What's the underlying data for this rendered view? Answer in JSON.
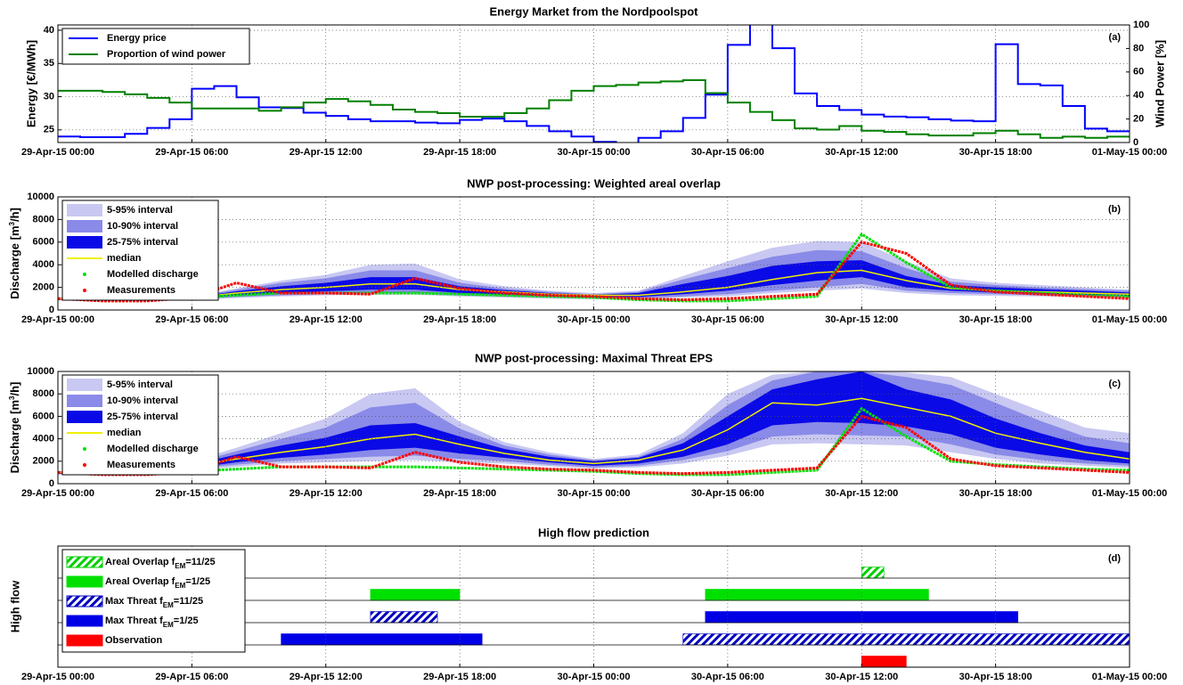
{
  "chart_data": [
    {
      "type": "step",
      "title": "Energy Market from the Nordpoolspot",
      "annotation": "(a)",
      "ylabel": "Energy [€/MWh]",
      "y2label": "Wind Power [%]",
      "legend": "upper left",
      "grid": true,
      "xlim": [
        0,
        48
      ],
      "xticks": [
        {
          "value": 0,
          "label": "29-Apr-15 00:00"
        },
        {
          "value": 6,
          "label": "29-Apr-15 06:00"
        },
        {
          "value": 12,
          "label": "29-Apr-15 12:00"
        },
        {
          "value": 18,
          "label": "29-Apr-15 18:00"
        },
        {
          "value": 24,
          "label": "30-Apr-15 00:00"
        },
        {
          "value": 30,
          "label": "30-Apr-15 06:00"
        },
        {
          "value": 36,
          "label": "30-Apr-15 12:00"
        },
        {
          "value": 42,
          "label": "30-Apr-15 18:00"
        },
        {
          "value": 48,
          "label": "01-May-15 00:00"
        }
      ],
      "ylim": [
        23.1,
        40.8
      ],
      "yticks": [
        25,
        30,
        35,
        40
      ],
      "ycolor": "#0000ff",
      "y2lim": [
        0,
        100
      ],
      "y2ticks": [
        0,
        20,
        40,
        60,
        80,
        100
      ],
      "y2color": "#008000",
      "x": [
        0,
        1,
        2,
        3,
        4,
        5,
        6,
        7,
        8,
        9,
        10,
        11,
        12,
        13,
        14,
        15,
        16,
        17,
        18,
        19,
        20,
        21,
        22,
        23,
        24,
        25,
        26,
        27,
        28,
        29,
        30,
        31,
        32,
        33,
        34,
        35,
        36,
        37,
        38,
        39,
        40,
        41,
        42,
        43,
        44,
        45,
        46,
        47
      ],
      "series": [
        {
          "name": "Energy price",
          "color": "#0000ff",
          "values": [
            24.0,
            23.9,
            23.9,
            24.4,
            25.3,
            26.6,
            31.2,
            31.6,
            29.9,
            28.4,
            28.3,
            27.6,
            27.1,
            26.6,
            26.3,
            26.3,
            26.1,
            26.0,
            26.5,
            26.7,
            26.3,
            25.6,
            24.8,
            24.0,
            23.2,
            23.0,
            23.8,
            24.8,
            26.8,
            30.3,
            37.8,
            45,
            37.3,
            30.5,
            28.6,
            28.0,
            27.3,
            27.0,
            26.9,
            26.6,
            26.4,
            26.3,
            37.9,
            31.9,
            31.7,
            28.6,
            25.2,
            24.8
          ]
        },
        {
          "name": "Proportion of wind power",
          "color": "#008000",
          "axis": "y2",
          "values": [
            44,
            44,
            43,
            41,
            38,
            34,
            29,
            29,
            29,
            27,
            30,
            34,
            37,
            35,
            32,
            28,
            26,
            25,
            22,
            22,
            25,
            29,
            36,
            44,
            48,
            49,
            51,
            52,
            53,
            42,
            34,
            26,
            19,
            12,
            11,
            14,
            10,
            9,
            7,
            6,
            6,
            8,
            10,
            7,
            4,
            5,
            4,
            5
          ]
        }
      ]
    },
    {
      "type": "band",
      "title": "NWP post-processing: Weighted areal overlap",
      "annotation": "(b)",
      "ylabel": [
        "Discharge [m",
        "3",
        "/h]"
      ],
      "legend": "upper left",
      "grid": true,
      "xlim": [
        0,
        48
      ],
      "xticks": [
        {
          "value": 0,
          "label": "29-Apr-15 00:00"
        },
        {
          "value": 6,
          "label": "29-Apr-15 06:00"
        },
        {
          "value": 12,
          "label": "29-Apr-15 12:00"
        },
        {
          "value": 18,
          "label": "29-Apr-15 18:00"
        },
        {
          "value": 24,
          "label": "30-Apr-15 00:00"
        },
        {
          "value": 30,
          "label": "30-Apr-15 06:00"
        },
        {
          "value": 36,
          "label": "30-Apr-15 12:00"
        },
        {
          "value": 42,
          "label": "30-Apr-15 18:00"
        },
        {
          "value": 48,
          "label": "01-May-15 00:00"
        }
      ],
      "ylim": [
        0,
        10000
      ],
      "yticks": [
        0,
        2000,
        4000,
        6000,
        8000,
        10000
      ],
      "x": [
        0,
        2,
        4,
        6,
        8,
        10,
        12,
        14,
        16,
        18,
        20,
        22,
        24,
        26,
        28,
        30,
        32,
        34,
        36,
        38,
        40,
        42,
        44,
        46,
        48
      ],
      "series": [
        {
          "name": "5-95% interval",
          "color": "#c8c8f2",
          "lower": [
            850,
            850,
            850,
            900,
            1050,
            1200,
            1300,
            1350,
            1350,
            1200,
            1100,
            1000,
            950,
            950,
            1100,
            1200,
            1500,
            1700,
            1900,
            1500,
            1300,
            1250,
            1200,
            1150,
            1050
          ],
          "upper": [
            1100,
            1100,
            1100,
            1200,
            1900,
            2600,
            3100,
            4000,
            4100,
            2700,
            2100,
            1700,
            1500,
            1700,
            3000,
            4300,
            5500,
            6100,
            6000,
            4300,
            2800,
            2400,
            2200,
            2000,
            1800
          ]
        },
        {
          "name": "10-90% interval",
          "color": "#8a8ae8",
          "lower": [
            900,
            900,
            900,
            950,
            1150,
            1300,
            1400,
            1500,
            1500,
            1300,
            1200,
            1100,
            1050,
            1050,
            1200,
            1400,
            1700,
            2000,
            2300,
            1700,
            1500,
            1400,
            1300,
            1250,
            1150
          ],
          "upper": [
            1050,
            1050,
            1050,
            1150,
            1800,
            2400,
            2800,
            3500,
            3500,
            2400,
            1900,
            1600,
            1400,
            1600,
            2700,
            3700,
            4700,
            5300,
            5200,
            3700,
            2500,
            2200,
            2000,
            1850,
            1700
          ]
        },
        {
          "name": "25-75% interval",
          "color": "#0a0ae6",
          "lower": [
            950,
            950,
            950,
            1000,
            1300,
            1500,
            1650,
            1800,
            1800,
            1500,
            1350,
            1250,
            1150,
            1150,
            1400,
            1700,
            2200,
            2600,
            2900,
            2000,
            1700,
            1550,
            1450,
            1350,
            1250
          ],
          "upper": [
            1000,
            1000,
            1000,
            1100,
            1650,
            2100,
            2400,
            2900,
            2900,
            2100,
            1750,
            1500,
            1350,
            1500,
            2300,
            3000,
            3900,
            4300,
            4400,
            3000,
            2200,
            2000,
            1850,
            1700,
            1550
          ]
        },
        {
          "name": "median",
          "color": "#f0f000",
          "values": [
            1000,
            1000,
            1000,
            1050,
            1500,
            1800,
            2000,
            2300,
            2300,
            1800,
            1600,
            1400,
            1300,
            1300,
            1600,
            2000,
            2700,
            3300,
            3500,
            2600,
            1900,
            1700,
            1600,
            1500,
            1400
          ]
        },
        {
          "name": "Modelled discharge",
          "color": "#00e000",
          "marker": "dot",
          "values": [
            1000,
            900,
            900,
            1100,
            1300,
            1500,
            1500,
            1500,
            1500,
            1400,
            1300,
            1200,
            1100,
            900,
            800,
            800,
            1000,
            1200,
            6700,
            4200,
            2000,
            1700,
            1500,
            1300,
            1200
          ]
        },
        {
          "name": "Measurements",
          "color": "#ff0000",
          "marker": "dot",
          "values": [
            1000,
            800,
            800,
            1100,
            2400,
            1500,
            1500,
            1400,
            2800,
            1900,
            1500,
            1300,
            1200,
            1000,
            900,
            1000,
            1200,
            1400,
            6000,
            5000,
            2200,
            1600,
            1400,
            1200,
            1000
          ]
        }
      ]
    },
    {
      "type": "band",
      "title": "NWP post-processing: Maximal Threat EPS",
      "annotation": "(c)",
      "ylabel": [
        "Discharge [m",
        "3",
        "/h]"
      ],
      "legend": "upper left",
      "grid": true,
      "xlim": [
        0,
        48
      ],
      "xticks": [
        {
          "value": 0,
          "label": "29-Apr-15 00:00"
        },
        {
          "value": 6,
          "label": "29-Apr-15 06:00"
        },
        {
          "value": 12,
          "label": "29-Apr-15 12:00"
        },
        {
          "value": 18,
          "label": "29-Apr-15 18:00"
        },
        {
          "value": 24,
          "label": "30-Apr-15 00:00"
        },
        {
          "value": 30,
          "label": "30-Apr-15 06:00"
        },
        {
          "value": 36,
          "label": "30-Apr-15 12:00"
        },
        {
          "value": 42,
          "label": "30-Apr-15 18:00"
        },
        {
          "value": 48,
          "label": "01-May-15 00:00"
        }
      ],
      "ylim": [
        0,
        10000
      ],
      "yticks": [
        0,
        2000,
        4000,
        6000,
        8000,
        10000
      ],
      "x": [
        0,
        2,
        4,
        6,
        8,
        10,
        12,
        14,
        16,
        18,
        20,
        22,
        24,
        26,
        28,
        30,
        32,
        34,
        36,
        38,
        40,
        42,
        44,
        46,
        48
      ],
      "series": [
        {
          "name": "5-95% interval",
          "color": "#c8c8f2",
          "lower": [
            800,
            850,
            900,
            1200,
            1500,
            1800,
            1900,
            2000,
            2100,
            1900,
            1800,
            1550,
            1350,
            1450,
            1800,
            2500,
            3500,
            3600,
            3500,
            3400,
            2800,
            2200,
            1800,
            1600,
            1400
          ],
          "upper": [
            1100,
            1100,
            1200,
            2000,
            3200,
            4500,
            5800,
            8000,
            8500,
            5500,
            3700,
            2800,
            2200,
            2600,
            4500,
            8000,
            9700,
            10000,
            10000,
            9900,
            9500,
            8000,
            6500,
            5000,
            4500
          ]
        },
        {
          "name": "10-90% interval",
          "color": "#8a8ae8",
          "lower": [
            850,
            900,
            950,
            1300,
            1700,
            2000,
            2200,
            2400,
            2500,
            2200,
            2000,
            1700,
            1450,
            1600,
            2100,
            2900,
            4200,
            4400,
            4300,
            4200,
            3500,
            2600,
            2100,
            1800,
            1600
          ],
          "upper": [
            1050,
            1050,
            1150,
            1850,
            2900,
            4000,
            5000,
            6800,
            7200,
            4900,
            3400,
            2600,
            2100,
            2400,
            4000,
            7000,
            9200,
            10000,
            10000,
            9500,
            8800,
            7200,
            5600,
            4200,
            3600
          ]
        },
        {
          "name": "25-75% interval",
          "color": "#0a0ae6",
          "lower": [
            900,
            950,
            1000,
            1400,
            1900,
            2300,
            2600,
            3000,
            3200,
            2700,
            2300,
            1900,
            1600,
            1800,
            2400,
            3500,
            5200,
            5500,
            5400,
            5100,
            4400,
            3200,
            2600,
            2100,
            1800
          ],
          "upper": [
            1000,
            1000,
            1100,
            1700,
            2600,
            3400,
            4100,
            5200,
            5400,
            4200,
            3100,
            2400,
            2000,
            2300,
            3600,
            6000,
            8400,
            9300,
            10000,
            8400,
            7500,
            5800,
            4500,
            3400,
            2800
          ]
        },
        {
          "name": "median",
          "color": "#f0f000",
          "values": [
            1000,
            1000,
            1100,
            1600,
            2200,
            2800,
            3300,
            4000,
            4400,
            3500,
            2700,
            2100,
            1800,
            2100,
            3000,
            4800,
            7200,
            7000,
            7600,
            6800,
            6000,
            4500,
            3600,
            2800,
            2200
          ]
        },
        {
          "name": "Modelled discharge",
          "color": "#00e000",
          "marker": "dot",
          "values": [
            1000,
            900,
            900,
            1100,
            1300,
            1500,
            1500,
            1500,
            1500,
            1400,
            1300,
            1200,
            1100,
            900,
            800,
            800,
            1000,
            1200,
            6700,
            4200,
            2000,
            1700,
            1500,
            1300,
            1200
          ]
        },
        {
          "name": "Measurements",
          "color": "#ff0000",
          "marker": "dot",
          "values": [
            1000,
            800,
            800,
            1100,
            2400,
            1500,
            1500,
            1400,
            2800,
            1900,
            1500,
            1300,
            1200,
            1000,
            900,
            1000,
            1200,
            1400,
            6000,
            5000,
            2200,
            1600,
            1400,
            1200,
            1000
          ]
        }
      ]
    },
    {
      "type": "timeline",
      "title": "High flow prediction",
      "annotation": "(d)",
      "ylabel": "High flow",
      "legend": "upper left",
      "grid": true,
      "xlim": [
        0,
        48
      ],
      "xticks": [
        {
          "value": 0,
          "label": "29-Apr-15 00:00"
        },
        {
          "value": 6,
          "label": "29-Apr-15 06:00"
        },
        {
          "value": 12,
          "label": "29-Apr-15 12:00"
        },
        {
          "value": 18,
          "label": "29-Apr-15 18:00"
        },
        {
          "value": 24,
          "label": "30-Apr-15 00:00"
        },
        {
          "value": 30,
          "label": "30-Apr-15 06:00"
        },
        {
          "value": 36,
          "label": "30-Apr-15 12:00"
        },
        {
          "value": 42,
          "label": "30-Apr-15 18:00"
        },
        {
          "value": 48,
          "label": "01-May-15 00:00"
        }
      ],
      "series": [
        {
          "name": [
            "Areal Overlap f",
            "EM",
            "=11/25"
          ],
          "color": "#00d000",
          "hatch": true
        },
        {
          "name": [
            "Areal Overlap f",
            "EM",
            "=1/25"
          ],
          "color": "#00e000"
        },
        {
          "name": [
            "Max Threat f",
            "EM",
            "=11/25"
          ],
          "color": "#0000c0",
          "hatch": true
        },
        {
          "name": [
            "Max Threat f",
            "EM",
            "=1/25"
          ],
          "color": "#0000e6"
        },
        {
          "name": "Observation",
          "color": "#ff0000"
        }
      ],
      "rows": [
        [
          {
            "series": 0,
            "start": 36,
            "end": 37
          }
        ],
        [
          {
            "series": 1,
            "start": 14,
            "end": 18
          },
          {
            "series": 1,
            "start": 29,
            "end": 39
          }
        ],
        [
          {
            "series": 2,
            "start": 14,
            "end": 17
          },
          {
            "series": 3,
            "start": 29,
            "end": 43
          }
        ],
        [
          {
            "series": 3,
            "start": 10,
            "end": 19
          },
          {
            "series": 2,
            "start": 28,
            "end": 48
          }
        ],
        [
          {
            "series": 4,
            "start": 36,
            "end": 38
          }
        ]
      ]
    }
  ]
}
